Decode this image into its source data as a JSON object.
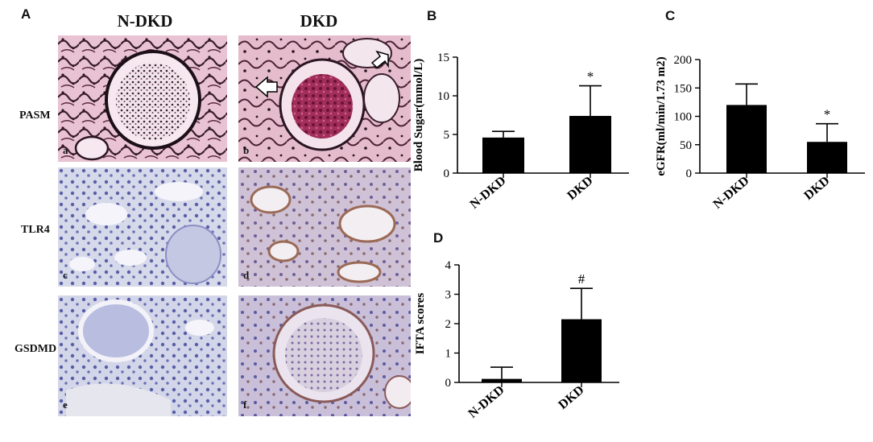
{
  "panel_labels": {
    "A": "A",
    "B": "B",
    "C": "C",
    "D": "D"
  },
  "histology": {
    "columns": [
      "N-DKD",
      "DKD"
    ],
    "rows": [
      "PASM",
      "TLR4",
      "GSDMD"
    ],
    "tile_letters": [
      "a",
      "b",
      "c",
      "d",
      "e",
      "f"
    ]
  },
  "colors": {
    "bar": "#000000",
    "pasm_bg": "#e7c4d2",
    "ihc_bg": "#d9dceb"
  },
  "chart_data": [
    {
      "type": "bar",
      "categories": [
        "N-DKD",
        "DKD"
      ],
      "values": [
        4.6,
        7.4
      ],
      "error": [
        0.8,
        3.9
      ],
      "annotations": [
        "",
        "*"
      ],
      "ylabel": "Blood Sugar(mmol/L)",
      "ylim": [
        0,
        15
      ],
      "yticks": [
        0,
        5,
        10,
        15
      ]
    },
    {
      "type": "bar",
      "categories": [
        "N-DKD",
        "DKD"
      ],
      "values": [
        120,
        55
      ],
      "error": [
        37,
        32
      ],
      "annotations": [
        "",
        "*"
      ],
      "ylabel": "eGFR(ml/min/1.73 m2)",
      "ylim": [
        0,
        200
      ],
      "yticks": [
        0,
        50,
        100,
        150,
        200
      ]
    },
    {
      "type": "bar",
      "categories": [
        "N-DKD",
        "DKD"
      ],
      "values": [
        0.12,
        2.15
      ],
      "error": [
        0.4,
        1.05
      ],
      "annotations": [
        "",
        "#"
      ],
      "ylabel": "IFTA scores",
      "ylim": [
        0,
        4
      ],
      "yticks": [
        0,
        1,
        2,
        3,
        4
      ]
    }
  ]
}
